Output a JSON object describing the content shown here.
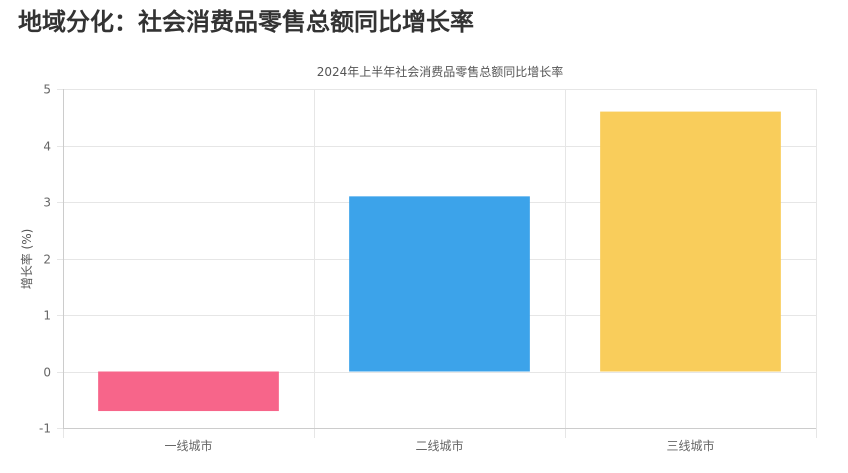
{
  "page": {
    "title": "地域分化：社会消费品零售总额同比增长率"
  },
  "chart_data": {
    "type": "bar",
    "title": "2024年上半年社会消费品零售总额同比增长率",
    "xlabel": "",
    "ylabel": "增长率 (%)",
    "categories": [
      "一线城市",
      "二线城市",
      "三线城市"
    ],
    "values": [
      -0.7,
      3.1,
      4.6
    ],
    "ylim": [
      -1,
      5
    ],
    "yticks": [
      -1,
      0,
      1,
      2,
      3,
      4,
      5
    ],
    "colors": [
      "#f7658a",
      "#3ca3ea",
      "#f9cd5b"
    ],
    "grid": true,
    "legend": "none"
  }
}
